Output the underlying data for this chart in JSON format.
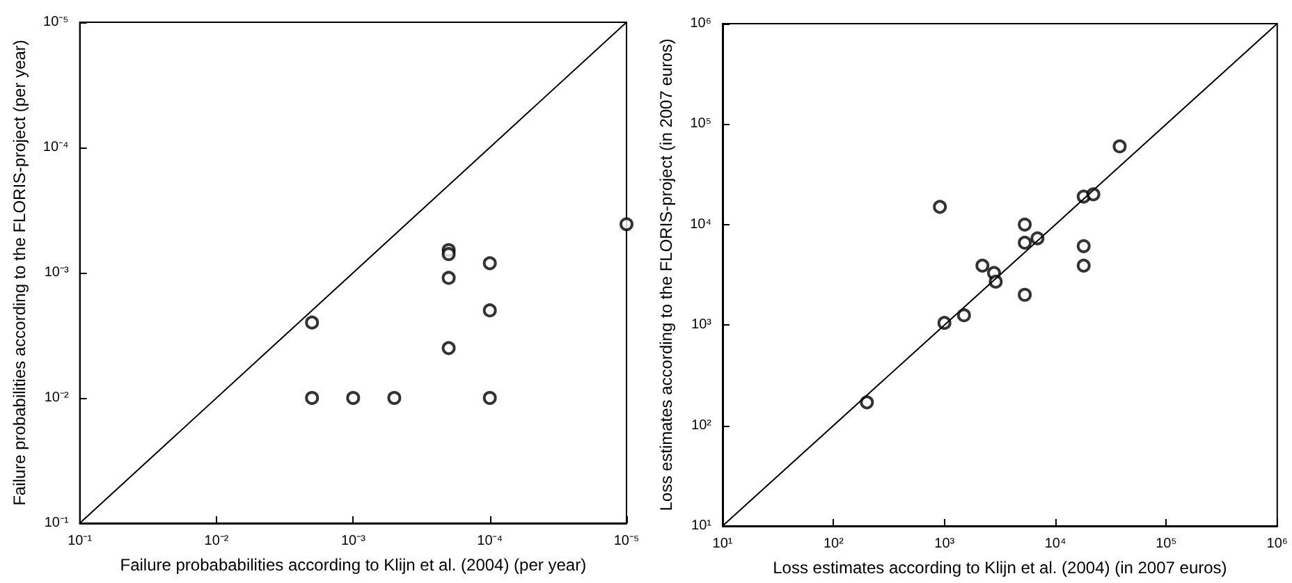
{
  "chart_data": [
    {
      "type": "scatter",
      "xlabel": "Failure probababilities according to Klijn et al. (2004) (per year)",
      "ylabel": "Failure probabilities according to the FLORIS-project (per year)",
      "xlim": [
        0.1,
        1e-05
      ],
      "ylim": [
        0.1,
        1e-05
      ],
      "xticks": [
        {
          "value": 0.1,
          "label": "10⁻¹"
        },
        {
          "value": 0.01,
          "label": "10⁻²"
        },
        {
          "value": 0.001,
          "label": "10⁻³"
        },
        {
          "value": 0.0001,
          "label": "10⁻⁴"
        },
        {
          "value": 1e-05,
          "label": "10⁻⁵"
        }
      ],
      "yticks": [
        {
          "value": 0.1,
          "label": "10⁻¹"
        },
        {
          "value": 0.01,
          "label": "10⁻²"
        },
        {
          "value": 0.001,
          "label": "10⁻³"
        },
        {
          "value": 0.0001,
          "label": "10⁻⁴"
        },
        {
          "value": 1e-05,
          "label": "10⁻⁵"
        }
      ],
      "log": "xy",
      "grid": false,
      "marker": "circle",
      "series": [
        {
          "color": "#000000",
          "x": [
            0.002,
            0.002,
            0.001,
            0.0005,
            0.0002,
            0.0002,
            0.0002,
            0.0002,
            0.0001,
            0.0001,
            0.0001,
            1e-05
          ],
          "values": [
            0.0025,
            0.01,
            0.01,
            0.01,
            0.00066,
            0.00071,
            0.0011,
            0.004,
            0.00084,
            0.002,
            0.01,
            0.00041
          ]
        },
        {
          "type": "line",
          "color": "#000000",
          "marker": "none",
          "line_style": "solid",
          "x": [
            0.1,
            1e-05
          ],
          "values": [
            0.1,
            1e-05
          ]
        }
      ]
    },
    {
      "type": "scatter",
      "xlabel": "Loss estimates according to Klijn et al. (2004) (in 2007 euros)",
      "ylabel": "Loss estimates according to the FLORIS-project (in 2007 euros)",
      "xlim": [
        10,
        1000000
      ],
      "ylim": [
        10,
        1000000
      ],
      "xticks": [
        {
          "value": 10,
          "label": "10¹"
        },
        {
          "value": 100,
          "label": "10²"
        },
        {
          "value": 1000,
          "label": "10³"
        },
        {
          "value": 10000,
          "label": "10⁴"
        },
        {
          "value": 100000,
          "label": "10⁵"
        },
        {
          "value": 1000000,
          "label": "10⁶"
        }
      ],
      "yticks": [
        {
          "value": 10,
          "label": "10¹"
        },
        {
          "value": 100,
          "label": "10²"
        },
        {
          "value": 1000,
          "label": "10³"
        },
        {
          "value": 10000,
          "label": "10⁴"
        },
        {
          "value": 100000,
          "label": "10⁵"
        },
        {
          "value": 1000000,
          "label": "10⁶"
        }
      ],
      "log": "xy",
      "grid": false,
      "marker": "circle",
      "series": [
        {
          "color": "#000000",
          "x": [
            200,
            910,
            1000,
            1500,
            2200,
            2800,
            2900,
            5300,
            5300,
            5300,
            6900,
            18000,
            18000,
            18000,
            22000,
            38000
          ],
          "values": [
            170,
            15000,
            1050,
            1250,
            3900,
            3300,
            2700,
            10000,
            6600,
            2000,
            7300,
            3900,
            6100,
            19000,
            20000,
            60000
          ]
        },
        {
          "type": "line",
          "color": "#000000",
          "marker": "none",
          "line_style": "solid",
          "x": [
            10,
            1000000
          ],
          "values": [
            10,
            1000000
          ]
        }
      ]
    }
  ]
}
